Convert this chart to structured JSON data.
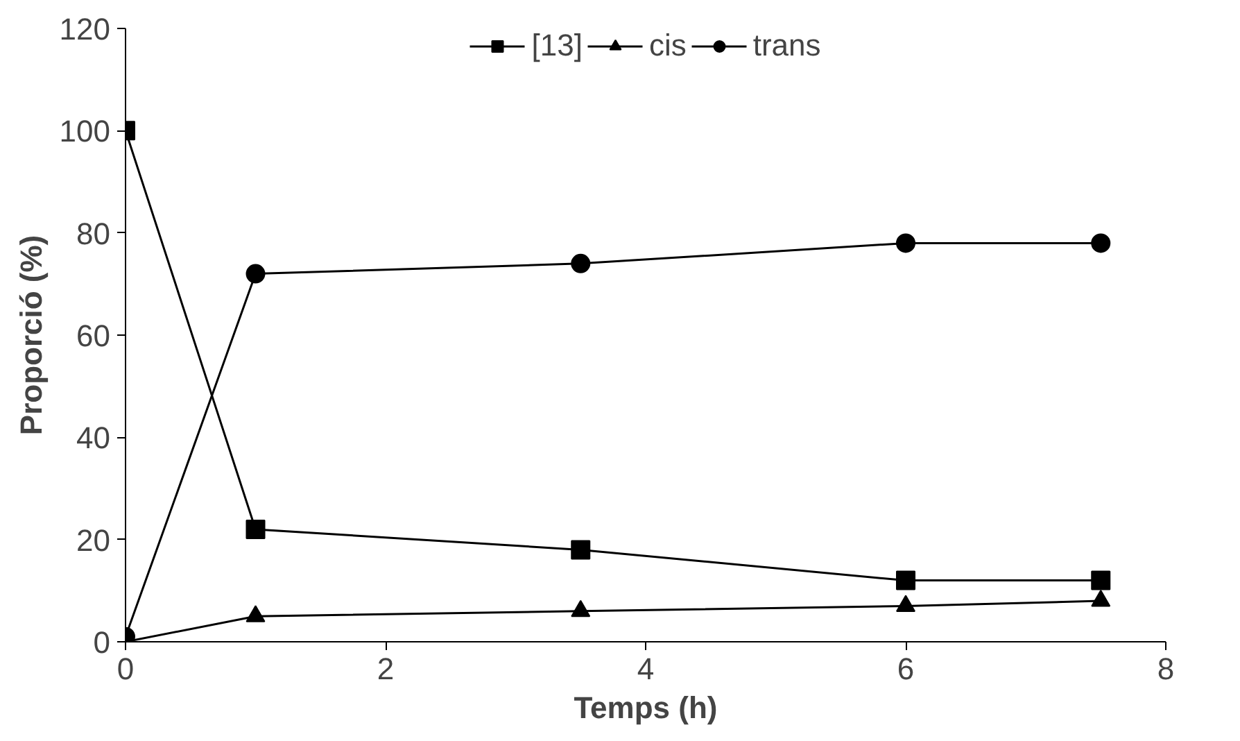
{
  "chart_data": {
    "type": "line",
    "xlabel": "Temps (h)",
    "ylabel": "Proporció (%)",
    "x": [
      0,
      1,
      3.5,
      6,
      7.5
    ],
    "xlim": [
      0,
      8
    ],
    "xticks": [
      0,
      2,
      4,
      6,
      8
    ],
    "ylim": [
      0,
      120
    ],
    "yticks": [
      0,
      20,
      40,
      60,
      80,
      100,
      120
    ],
    "grid": false,
    "legend": "top",
    "line_style": "solid",
    "series": [
      {
        "name": "[13]",
        "color": "#000000",
        "marker": "square",
        "values": [
          100,
          22,
          18,
          12,
          12
        ]
      },
      {
        "name": "cis",
        "color": "#000000",
        "marker": "triangle",
        "values": [
          0,
          5,
          6,
          7,
          8
        ]
      },
      {
        "name": "trans",
        "color": "#000000",
        "marker": "circle",
        "values": [
          1,
          72,
          74,
          78,
          78
        ]
      }
    ]
  }
}
